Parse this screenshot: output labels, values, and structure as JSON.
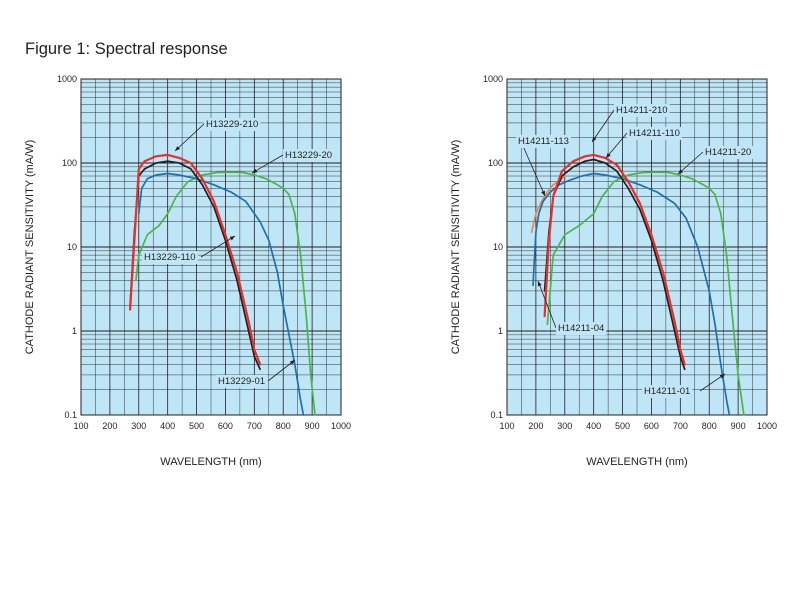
{
  "figure_title": "Figure 1: Spectral response",
  "colors": {
    "plot_bg": "#bfe6f7",
    "grid": "#231f20",
    "black": "#231f20",
    "red": "#e8302b",
    "blue": "#1f6fb4",
    "green": "#4db548",
    "orange": "#e8894a"
  },
  "chart_data": [
    {
      "type": "line",
      "title": "",
      "xlabel": "WAVELENGTH (nm)",
      "ylabel": "CATHODE RADIANT SENSITIVITY (mA/W)",
      "xlim": [
        100,
        1000
      ],
      "ylim": [
        0.1,
        1000
      ],
      "yscale": "log",
      "grid": true,
      "xticks": [
        "100",
        "200",
        "300",
        "400",
        "500",
        "600",
        "700",
        "800",
        "900",
        "1000"
      ],
      "yticks": [
        "0.1",
        "1",
        "10",
        "100",
        "1000"
      ],
      "series": [
        {
          "name": "H13229-20",
          "color": "green",
          "x": [
            290,
            300,
            330,
            370,
            400,
            430,
            470,
            520,
            570,
            620,
            660,
            700,
            740,
            780,
            800,
            820,
            840,
            860,
            880,
            895,
            910
          ],
          "y": [
            4,
            8,
            14,
            18,
            25,
            40,
            60,
            72,
            77,
            78,
            77,
            72,
            65,
            55,
            50,
            42,
            25,
            8,
            1.5,
            0.3,
            0.1
          ]
        },
        {
          "name": "H13229-01",
          "color": "blue",
          "x": [
            300,
            310,
            330,
            360,
            400,
            440,
            500,
            560,
            620,
            670,
            720,
            750,
            780,
            800,
            820,
            840,
            860,
            870
          ],
          "y": [
            25,
            50,
            65,
            72,
            75,
            72,
            65,
            55,
            45,
            35,
            20,
            12,
            5,
            2,
            0.9,
            0.4,
            0.15,
            0.1
          ]
        },
        {
          "name": "H13229-110",
          "color": "black",
          "x": [
            270,
            285,
            300,
            320,
            360,
            400,
            440,
            480,
            520,
            560,
            600,
            640,
            680,
            700,
            720
          ],
          "y": [
            2,
            15,
            70,
            85,
            100,
            105,
            100,
            85,
            55,
            30,
            12,
            4,
            1,
            0.5,
            0.35
          ]
        },
        {
          "name": "H13229-210",
          "color": "red",
          "x": [
            270,
            285,
            300,
            320,
            360,
            400,
            440,
            480,
            520,
            560,
            600,
            640,
            680,
            700,
            720
          ],
          "y": [
            1.8,
            12,
            85,
            105,
            120,
            125,
            115,
            100,
            65,
            35,
            14,
            5,
            1.3,
            0.6,
            0.4
          ]
        }
      ],
      "callouts": [
        "H13229-210",
        "H13229-20",
        "H13229-110",
        "H13229-01"
      ]
    },
    {
      "type": "line",
      "title": "",
      "xlabel": "WAVELENGTH (nm)",
      "ylabel": "CATHODE RADIANT SENSITIVITY (mA/W)",
      "xlim": [
        100,
        1000
      ],
      "ylim": [
        0.1,
        1000
      ],
      "yscale": "log",
      "grid": true,
      "xticks": [
        "100",
        "200",
        "300",
        "400",
        "500",
        "600",
        "700",
        "800",
        "900",
        "1000"
      ],
      "yticks": [
        "0.1",
        "1",
        "10",
        "100",
        "1000"
      ],
      "series": [
        {
          "name": "H14211-113",
          "color": "orange",
          "x": [
            185,
            200,
            220,
            240,
            260,
            280,
            300
          ],
          "y": [
            15,
            25,
            35,
            45,
            55,
            60,
            70
          ]
        },
        {
          "name": "H14211-04",
          "color": "blue",
          "x": [
            190,
            200,
            210,
            225,
            250,
            280,
            320,
            360,
            400,
            440,
            500,
            560,
            620,
            680,
            720,
            760,
            800,
            820,
            840,
            860,
            870
          ],
          "y": [
            3.5,
            15,
            25,
            35,
            45,
            55,
            63,
            70,
            75,
            72,
            65,
            55,
            45,
            33,
            22,
            10,
            3,
            1.2,
            0.4,
            0.15,
            0.1
          ]
        },
        {
          "name": "H14211-20",
          "color": "green",
          "x": [
            240,
            260,
            300,
            350,
            400,
            430,
            470,
            520,
            570,
            620,
            660,
            700,
            740,
            780,
            800,
            820,
            840,
            860,
            880,
            900,
            920
          ],
          "y": [
            1.2,
            8,
            14,
            18,
            25,
            40,
            60,
            72,
            77,
            78,
            77,
            72,
            65,
            55,
            50,
            42,
            25,
            8,
            1.5,
            0.3,
            0.1
          ]
        },
        {
          "name": "H14211-110",
          "color": "black",
          "x": [
            230,
            245,
            260,
            290,
            330,
            370,
            400,
            440,
            480,
            520,
            560,
            600,
            640,
            680,
            700,
            715
          ],
          "y": [
            3,
            15,
            40,
            70,
            90,
            105,
            110,
            100,
            80,
            50,
            28,
            12,
            4,
            1,
            0.5,
            0.35
          ]
        },
        {
          "name": "H14211-210",
          "color": "red",
          "x": [
            230,
            245,
            260,
            290,
            330,
            370,
            400,
            440,
            480,
            520,
            560,
            600,
            640,
            680,
            700,
            715
          ],
          "y": [
            1.5,
            12,
            40,
            80,
            105,
            120,
            125,
            115,
            95,
            60,
            33,
            14,
            5,
            1.3,
            0.6,
            0.4
          ]
        }
      ],
      "callouts": [
        "H14211-210",
        "H14211-113",
        "H14211-110",
        "H14211-20",
        "H14211-04",
        "H14211-01"
      ]
    }
  ]
}
